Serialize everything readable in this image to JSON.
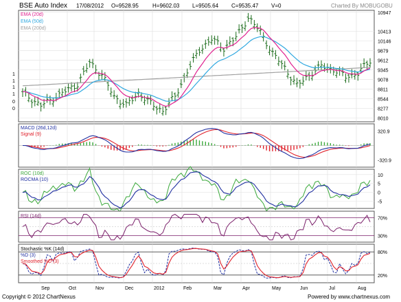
{
  "header": {
    "title": "BSE Auto Index",
    "date": "17/08/2012",
    "open": "O=9528.95",
    "high": "H=9602.03",
    "low": "L=9505.64",
    "close": "C=9535.47",
    "volume": "V=0",
    "credit": "Charted By MOBUGOBU"
  },
  "footer": {
    "copyright": "Copyright © 2012 ChartNexus",
    "powered": "Powered by www.chartnexus.com"
  },
  "colors": {
    "price_bar": "#1a6b1a",
    "ema20": "#e0208f",
    "ema50": "#2fa8e0",
    "ema200": "#a0a0a0",
    "macd": "#1f2fa0",
    "signal": "#e0202a",
    "roc": "#3aa83a",
    "rocma": "#1f2fa0",
    "rsi": "#7a1f6a",
    "stoch_k": "#1f2fa0",
    "stoch_d": "#e0202a"
  },
  "chart_data": [
    {
      "type": "candlestick",
      "legend": [
        "EMA (20d)",
        "EMA (50d)",
        "EMA (200d)"
      ],
      "y_ticks": [
        8010,
        8277,
        8544,
        8811,
        9078,
        9345,
        9612,
        9879,
        10146,
        10413,
        10947
      ],
      "left_ticks": [
        "1",
        "1",
        "1",
        "1",
        "0",
        "0"
      ],
      "ylim": [
        7900,
        11000
      ],
      "x_ticks": [
        "Sep",
        "Oct",
        "Nov",
        "Dec",
        "2012",
        "Feb",
        "Mar",
        "Apr",
        "May",
        "Jun",
        "Jul",
        "Aug"
      ],
      "close_keypoints": [
        {
          "t": 0,
          "v": 8700
        },
        {
          "t": 6,
          "v": 8350
        },
        {
          "t": 12,
          "v": 8650
        },
        {
          "t": 18,
          "v": 8950
        },
        {
          "t": 22,
          "v": 9550
        },
        {
          "t": 26,
          "v": 9200
        },
        {
          "t": 30,
          "v": 8600
        },
        {
          "t": 34,
          "v": 8350
        },
        {
          "t": 38,
          "v": 8700
        },
        {
          "t": 42,
          "v": 8400
        },
        {
          "t": 46,
          "v": 8200
        },
        {
          "t": 50,
          "v": 8600
        },
        {
          "t": 54,
          "v": 9300
        },
        {
          "t": 58,
          "v": 9900
        },
        {
          "t": 62,
          "v": 10200
        },
        {
          "t": 66,
          "v": 9950
        },
        {
          "t": 70,
          "v": 10250
        },
        {
          "t": 74,
          "v": 10800
        },
        {
          "t": 78,
          "v": 10400
        },
        {
          "t": 82,
          "v": 9800
        },
        {
          "t": 86,
          "v": 9400
        },
        {
          "t": 90,
          "v": 8900
        },
        {
          "t": 94,
          "v": 9200
        },
        {
          "t": 98,
          "v": 9450
        },
        {
          "t": 102,
          "v": 9350
        },
        {
          "t": 106,
          "v": 9150
        },
        {
          "t": 110,
          "v": 9250
        },
        {
          "t": 114,
          "v": 9600
        }
      ]
    },
    {
      "type": "line",
      "legend": [
        "MACD (26d,12d)",
        "Signal (9)"
      ],
      "y_ticks": [
        "320.9",
        "-320.9"
      ],
      "ylim": [
        -480,
        480
      ]
    },
    {
      "type": "line",
      "legend": [
        "ROC (10d)",
        "ROCMA (10)"
      ],
      "y_ticks": [
        "10",
        "5",
        "0",
        "-5"
      ],
      "ylim": [
        -9,
        13
      ]
    },
    {
      "type": "line",
      "legend": [
        "RSI (14d)"
      ],
      "y_ticks": [
        "70%",
        "30%"
      ],
      "ylim": [
        15,
        85
      ]
    },
    {
      "type": "line",
      "legend": [
        "Stochastic %K (14d)",
        "%D (3)",
        "Smoothed %D (3)"
      ],
      "y_ticks": [
        "80%",
        "20%"
      ],
      "ylim": [
        0,
        100
      ]
    }
  ]
}
